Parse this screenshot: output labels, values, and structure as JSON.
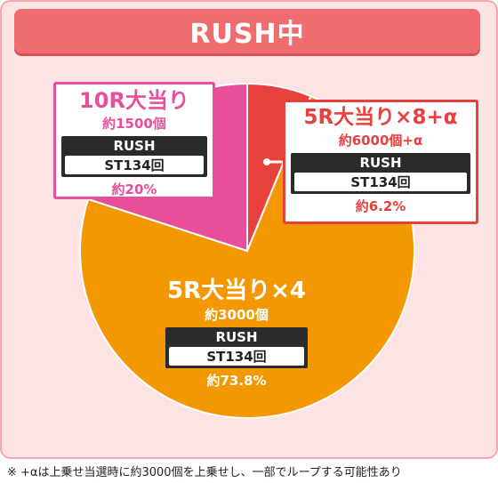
{
  "header": {
    "title": "RUSH中"
  },
  "chart_data": {
    "type": "pie",
    "title": "RUSH中",
    "slices": [
      {
        "label": "5R大当り×8+α",
        "payout": "約6000個+α",
        "rush": "RUSH",
        "st": "ST134回",
        "percent_label": "約6.2%",
        "value": 6.2,
        "color": "#e8413d"
      },
      {
        "label": "5R大当り×4",
        "payout": "約3000個",
        "rush": "RUSH",
        "st": "ST134回",
        "percent_label": "約73.8%",
        "value": 73.8,
        "color": "#f39800"
      },
      {
        "label": "10R大当り",
        "payout": "約1500個",
        "rush": "RUSH",
        "st": "ST134回",
        "percent_label": "約20%",
        "value": 20,
        "color": "#e84f9a"
      }
    ]
  },
  "footnote": "※ +αは上乗せ当選時に約3000個を上乗せし、一部でループする可能性あり"
}
